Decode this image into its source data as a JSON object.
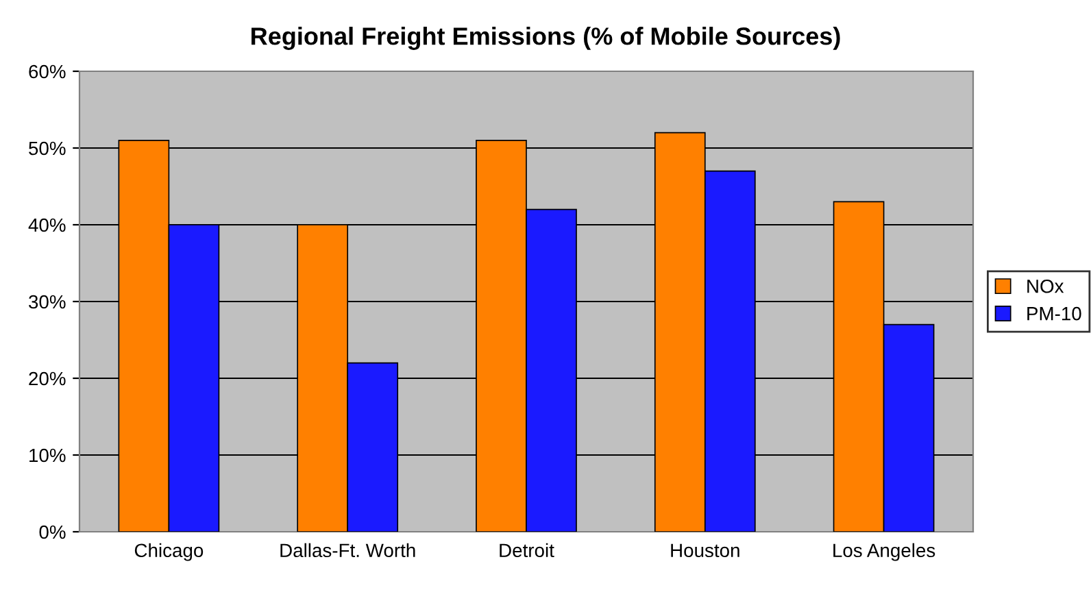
{
  "chart_data": {
    "type": "bar",
    "title": "Regional Freight Emissions (% of Mobile Sources)",
    "categories": [
      "Chicago",
      "Dallas-Ft. Worth",
      "Detroit",
      "Houston",
      "Los Angeles"
    ],
    "series": [
      {
        "name": "NOx",
        "color": "#ff8000",
        "values": [
          51,
          40,
          51,
          52,
          43
        ]
      },
      {
        "name": "PM-10",
        "color": "#1a1aff",
        "values": [
          40,
          22,
          42,
          47,
          27
        ]
      }
    ],
    "ylim": [
      0,
      60
    ],
    "yticks": [
      {
        "value": 0,
        "label": "0%"
      },
      {
        "value": 10,
        "label": "10%"
      },
      {
        "value": 20,
        "label": "20%"
      },
      {
        "value": 30,
        "label": "30%"
      },
      {
        "value": 40,
        "label": "40%"
      },
      {
        "value": 50,
        "label": "50%"
      },
      {
        "value": 60,
        "label": "60%"
      }
    ],
    "grid": "y",
    "legend": "right"
  }
}
